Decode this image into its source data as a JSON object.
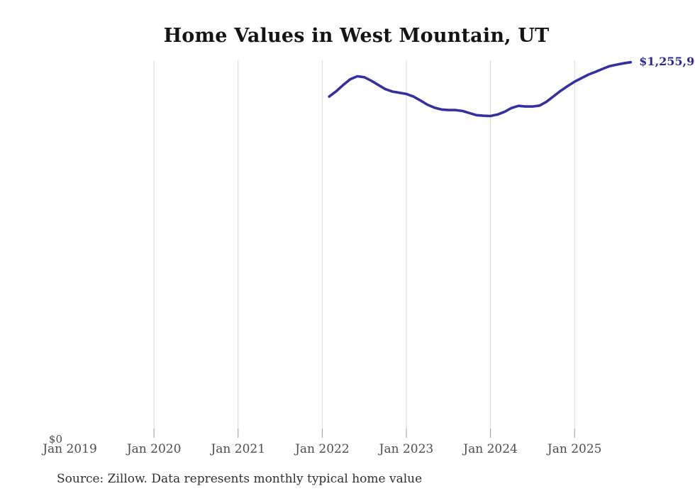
{
  "chart": {
    "title": "Home Values in West Mountain, UT",
    "source_note": "Source: Zillow. Data represents monthly typical home value",
    "y_zero_label": "$0",
    "latest_value_label": "$1,255,9",
    "colors": {
      "line": "#34309f",
      "value_label": "#2b2a94",
      "gridline": "#d6d6d6",
      "tick": "#999999",
      "axis_text": "#4d4d4d"
    }
  },
  "chart_data": {
    "type": "line",
    "title": "Home Values in West Mountain, UT",
    "xlabel": "",
    "ylabel": "",
    "ylim": [
      0,
      1260000
    ],
    "grid": "vertical-only",
    "legend": "none",
    "x_ticks": [
      {
        "label": "Jan 2019",
        "year": 2019,
        "month": 1,
        "gridline": false
      },
      {
        "label": "Jan 2020",
        "year": 2020,
        "month": 1,
        "gridline": true
      },
      {
        "label": "Jan 2021",
        "year": 2021,
        "month": 1,
        "gridline": true
      },
      {
        "label": "Jan 2022",
        "year": 2022,
        "month": 1,
        "gridline": true
      },
      {
        "label": "Jan 2023",
        "year": 2023,
        "month": 1,
        "gridline": true
      },
      {
        "label": "Jan 2024",
        "year": 2024,
        "month": 1,
        "gridline": true
      },
      {
        "label": "Jan 2025",
        "year": 2025,
        "month": 1,
        "gridline": true
      }
    ],
    "y_ticks": [
      {
        "label": "$0",
        "value": 0
      }
    ],
    "series": [
      {
        "name": "Monthly typical home value",
        "end_label": "$1,255,9",
        "points": [
          {
            "x": "2022-02",
            "value": 1141000
          },
          {
            "x": "2022-03",
            "value": 1159000
          },
          {
            "x": "2022-04",
            "value": 1180000
          },
          {
            "x": "2022-05",
            "value": 1199000
          },
          {
            "x": "2022-06",
            "value": 1209000
          },
          {
            "x": "2022-07",
            "value": 1206000
          },
          {
            "x": "2022-08",
            "value": 1194000
          },
          {
            "x": "2022-09",
            "value": 1180000
          },
          {
            "x": "2022-10",
            "value": 1166000
          },
          {
            "x": "2022-11",
            "value": 1158000
          },
          {
            "x": "2022-12",
            "value": 1154000
          },
          {
            "x": "2023-01",
            "value": 1150000
          },
          {
            "x": "2023-02",
            "value": 1141000
          },
          {
            "x": "2023-03",
            "value": 1128000
          },
          {
            "x": "2023-04",
            "value": 1114000
          },
          {
            "x": "2023-05",
            "value": 1104000
          },
          {
            "x": "2023-06",
            "value": 1098000
          },
          {
            "x": "2023-07",
            "value": 1096000
          },
          {
            "x": "2023-08",
            "value": 1096000
          },
          {
            "x": "2023-09",
            "value": 1093000
          },
          {
            "x": "2023-10",
            "value": 1086000
          },
          {
            "x": "2023-11",
            "value": 1079000
          },
          {
            "x": "2023-12",
            "value": 1077000
          },
          {
            "x": "2024-01",
            "value": 1076000
          },
          {
            "x": "2024-02",
            "value": 1081000
          },
          {
            "x": "2024-03",
            "value": 1090000
          },
          {
            "x": "2024-04",
            "value": 1103000
          },
          {
            "x": "2024-05",
            "value": 1110000
          },
          {
            "x": "2024-06",
            "value": 1108000
          },
          {
            "x": "2024-07",
            "value": 1108000
          },
          {
            "x": "2024-08",
            "value": 1111000
          },
          {
            "x": "2024-09",
            "value": 1124000
          },
          {
            "x": "2024-10",
            "value": 1142000
          },
          {
            "x": "2024-11",
            "value": 1160000
          },
          {
            "x": "2024-12",
            "value": 1176000
          },
          {
            "x": "2025-01",
            "value": 1191000
          },
          {
            "x": "2025-02",
            "value": 1203000
          },
          {
            "x": "2025-03",
            "value": 1215000
          },
          {
            "x": "2025-04",
            "value": 1224000
          },
          {
            "x": "2025-05",
            "value": 1234000
          },
          {
            "x": "2025-06",
            "value": 1243000
          },
          {
            "x": "2025-07",
            "value": 1248000
          },
          {
            "x": "2025-08",
            "value": 1252500
          },
          {
            "x": "2025-09",
            "value": 1255900
          }
        ]
      }
    ]
  }
}
